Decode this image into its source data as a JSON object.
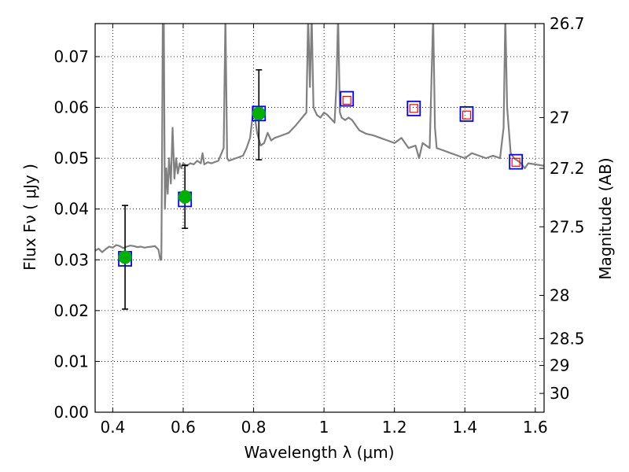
{
  "chart_data": {
    "type": "scatter",
    "xlabel": "Wavelength  λ (μm)",
    "ylabel": "Flux  Fν  ( μJy )",
    "y2label": "Magnitude (AB)",
    "xlim": [
      0.35,
      1.625
    ],
    "ylim": [
      0.0,
      0.0765
    ],
    "grid": true,
    "x_ticks": [
      {
        "value": 0.4,
        "label": "0.4"
      },
      {
        "value": 0.6,
        "label": "0.6"
      },
      {
        "value": 0.8,
        "label": "0.8"
      },
      {
        "value": 1.0,
        "label": "1"
      },
      {
        "value": 1.2,
        "label": "1.2"
      },
      {
        "value": 1.4,
        "label": "1.4"
      },
      {
        "value": 1.6,
        "label": "1.6"
      }
    ],
    "y_ticks": [
      {
        "value": 0.0,
        "label": "0.00"
      },
      {
        "value": 0.01,
        "label": "0.01"
      },
      {
        "value": 0.02,
        "label": "0.02"
      },
      {
        "value": 0.03,
        "label": "0.03"
      },
      {
        "value": 0.04,
        "label": "0.04"
      },
      {
        "value": 0.05,
        "label": "0.05"
      },
      {
        "value": 0.06,
        "label": "0.06"
      },
      {
        "value": 0.07,
        "label": "0.07"
      }
    ],
    "y2_ticks": [
      {
        "flux": 0.0765,
        "label": "26.7"
      },
      {
        "flux": 0.058,
        "label": "27"
      },
      {
        "flux": 0.048,
        "label": "27.2"
      },
      {
        "flux": 0.0365,
        "label": "27.5"
      },
      {
        "flux": 0.023,
        "label": "28"
      },
      {
        "flux": 0.0145,
        "label": "28.5"
      },
      {
        "flux": 0.0092,
        "label": "29"
      },
      {
        "flux": 0.0037,
        "label": "30"
      }
    ],
    "series": [
      {
        "kind": "model_spectrum",
        "color": "#808080",
        "x": [
          0.35,
          0.36,
          0.37,
          0.38,
          0.39,
          0.4,
          0.41,
          0.42,
          0.43,
          0.44,
          0.45,
          0.46,
          0.47,
          0.48,
          0.49,
          0.5,
          0.51,
          0.52,
          0.53,
          0.535,
          0.538,
          0.54,
          0.542,
          0.545,
          0.548,
          0.552,
          0.556,
          0.56,
          0.565,
          0.57,
          0.575,
          0.58,
          0.585,
          0.59,
          0.595,
          0.6,
          0.61,
          0.62,
          0.63,
          0.64,
          0.65,
          0.655,
          0.66,
          0.67,
          0.68,
          0.7,
          0.715,
          0.72,
          0.725,
          0.73,
          0.75,
          0.77,
          0.78,
          0.79,
          0.8,
          0.81,
          0.82,
          0.83,
          0.84,
          0.85,
          0.86,
          0.88,
          0.9,
          0.92,
          0.95,
          0.955,
          0.96,
          0.965,
          0.97,
          0.98,
          0.99,
          1.0,
          1.01,
          1.03,
          1.035,
          1.04,
          1.045,
          1.05,
          1.06,
          1.07,
          1.08,
          1.09,
          1.1,
          1.12,
          1.14,
          1.16,
          1.18,
          1.2,
          1.22,
          1.24,
          1.26,
          1.27,
          1.28,
          1.3,
          1.31,
          1.315,
          1.32,
          1.34,
          1.36,
          1.38,
          1.4,
          1.42,
          1.44,
          1.46,
          1.48,
          1.5,
          1.51,
          1.515,
          1.52,
          1.53,
          1.54,
          1.55,
          1.56,
          1.57,
          1.58,
          1.6,
          1.625
        ],
        "y": [
          0.0318,
          0.0322,
          0.0315,
          0.0321,
          0.0326,
          0.0324,
          0.0329,
          0.0327,
          0.0323,
          0.0326,
          0.0328,
          0.0327,
          0.0325,
          0.0326,
          0.0324,
          0.0325,
          0.0326,
          0.0327,
          0.032,
          0.03,
          0.03,
          0.05,
          0.0765,
          0.078,
          0.04,
          0.048,
          0.043,
          0.05,
          0.045,
          0.056,
          0.046,
          0.05,
          0.047,
          0.049,
          0.048,
          0.049,
          0.0485,
          0.049,
          0.0488,
          0.0495,
          0.049,
          0.051,
          0.0488,
          0.0492,
          0.049,
          0.0495,
          0.052,
          0.078,
          0.05,
          0.0495,
          0.05,
          0.0505,
          0.052,
          0.054,
          0.06,
          0.055,
          0.0525,
          0.053,
          0.055,
          0.0535,
          0.054,
          0.0545,
          0.055,
          0.0565,
          0.059,
          0.078,
          0.064,
          0.078,
          0.06,
          0.0585,
          0.058,
          0.059,
          0.0585,
          0.057,
          0.064,
          0.078,
          0.059,
          0.058,
          0.0575,
          0.058,
          0.0575,
          0.0565,
          0.0555,
          0.0548,
          0.0545,
          0.054,
          0.0535,
          0.053,
          0.054,
          0.052,
          0.0525,
          0.05,
          0.053,
          0.052,
          0.078,
          0.056,
          0.052,
          0.0515,
          0.051,
          0.0505,
          0.05,
          0.051,
          0.0505,
          0.05,
          0.0505,
          0.05,
          0.056,
          0.078,
          0.06,
          0.051,
          0.05,
          0.0495,
          0.049,
          0.048,
          0.049,
          0.0488,
          0.0485
        ]
      },
      {
        "kind": "green_points",
        "color": "#00b000",
        "x": [
          0.435,
          0.605,
          0.815
        ],
        "y": [
          0.0305,
          0.0424,
          0.0588
        ],
        "yerr_low": [
          0.0203,
          0.0362,
          0.0497
        ],
        "yerr_high": [
          0.0407,
          0.0486,
          0.0674
        ]
      },
      {
        "kind": "blue_squares",
        "color": "#0000ff",
        "x": [
          0.435,
          0.605,
          0.815,
          1.065,
          1.255,
          1.405,
          1.545
        ],
        "y": [
          0.0302,
          0.0419,
          0.0588,
          0.0617,
          0.0598,
          0.0587,
          0.0493
        ]
      },
      {
        "kind": "red_squares",
        "color": "#ff0000",
        "x": [
          1.065,
          1.255,
          1.405,
          1.545
        ],
        "y": [
          0.0614,
          0.0598,
          0.0585,
          0.0492
        ]
      }
    ]
  }
}
